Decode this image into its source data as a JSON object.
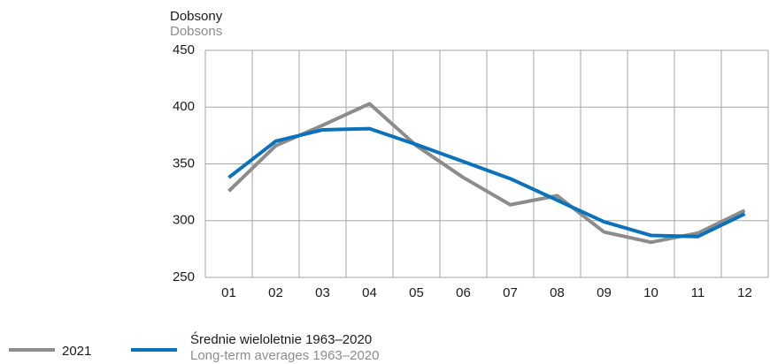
{
  "chart_data": {
    "type": "line",
    "ylabel": "Dobsony",
    "ylabel_secondary": "Dobsons",
    "categories": [
      "01",
      "02",
      "03",
      "04",
      "05",
      "06",
      "07",
      "08",
      "09",
      "10",
      "11",
      "12"
    ],
    "series": [
      {
        "name": "2021",
        "color": "#8c8c8c",
        "values": [
          326,
          366,
          384,
          403,
          366,
          338,
          314,
          322,
          290,
          281,
          289,
          309
        ]
      },
      {
        "name": "Średnie wieloletnie 1963–2020",
        "name_secondary": "Long-term averages 1963–2020",
        "color": "#0a72ba",
        "values": [
          338,
          370,
          380,
          381,
          367,
          352,
          337,
          318,
          299,
          287,
          286,
          306
        ]
      }
    ],
    "ylim": [
      250,
      450
    ],
    "yticks": [
      250,
      300,
      350,
      400,
      450
    ],
    "grid": true
  }
}
